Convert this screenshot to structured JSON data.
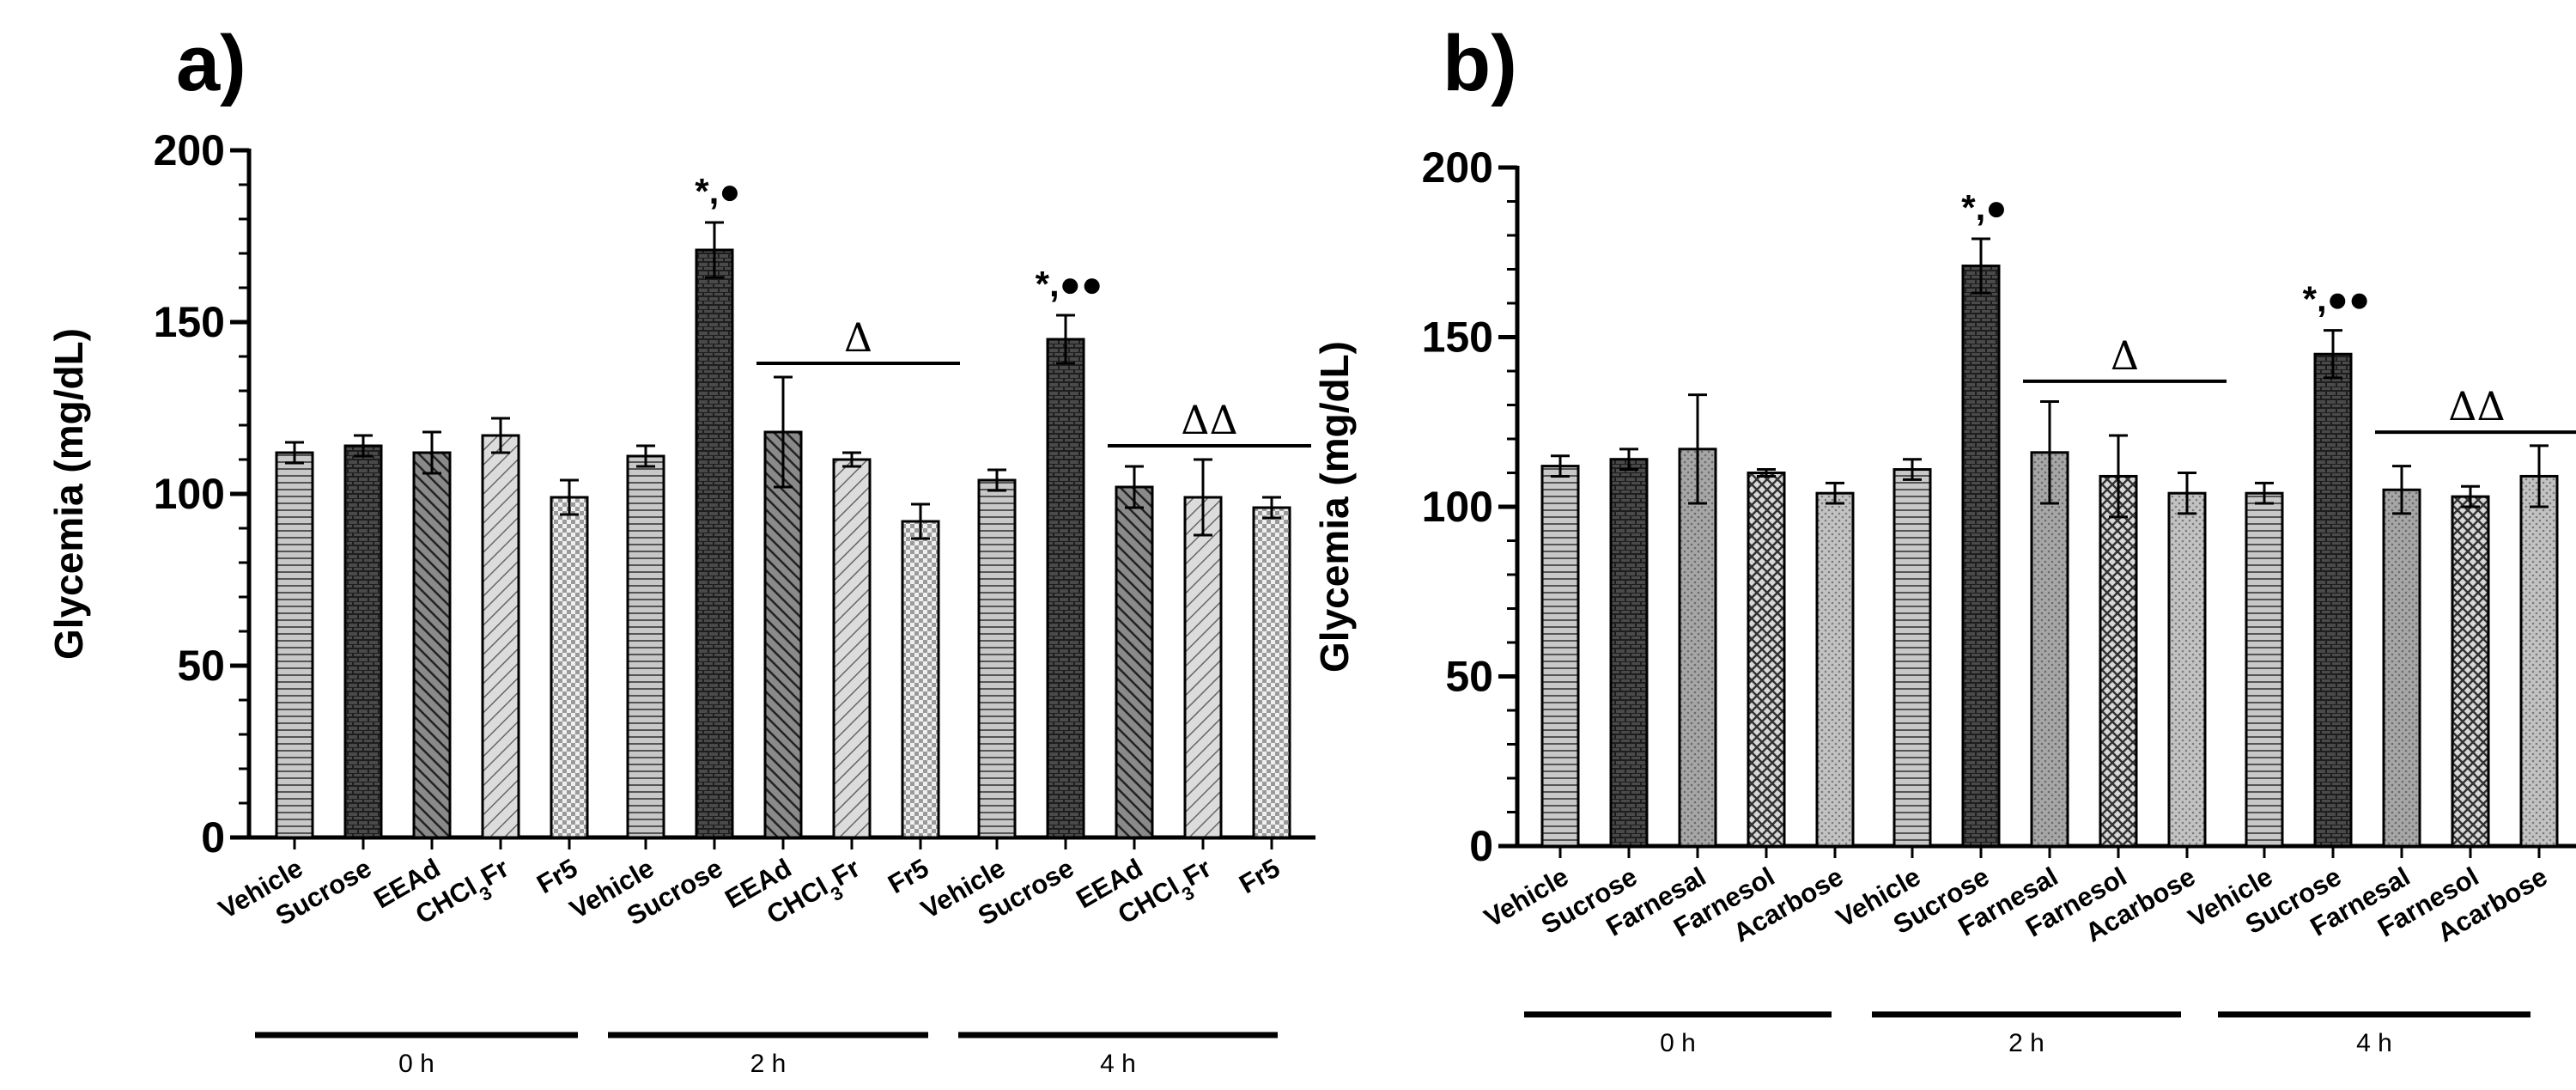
{
  "chart_data": [
    {
      "type": "bar",
      "panel_label": "a)",
      "ylabel": "Glycemia (mg/dL)",
      "ylim": [
        0,
        200
      ],
      "yticks": [
        "0",
        "50",
        "100",
        "150",
        "200"
      ],
      "groups": [
        {
          "name": "0 h",
          "categories": [
            "Vehicle",
            "Sucrose",
            "EEAd",
            "CHCl3Fr",
            "Fr5"
          ],
          "values": [
            112,
            114,
            112,
            117,
            99
          ],
          "errors": [
            3,
            3,
            6,
            5,
            5
          ],
          "annotations": []
        },
        {
          "name": "2 h",
          "categories": [
            "Vehicle",
            "Sucrose",
            "EEAd",
            "CHCl3Fr",
            "Fr5"
          ],
          "values": [
            111,
            171,
            118,
            110,
            92
          ],
          "errors": [
            3,
            8,
            16,
            2,
            5
          ],
          "annotations": [
            {
              "bar": 1,
              "text": "*,●"
            }
          ],
          "bracket": {
            "from": 2,
            "to": 4,
            "text": "Δ",
            "y": 138
          }
        },
        {
          "name": "4 h",
          "categories": [
            "Vehicle",
            "Sucrose",
            "EEAd",
            "CHCl3Fr",
            "Fr5"
          ],
          "values": [
            104,
            145,
            102,
            99,
            96
          ],
          "errors": [
            3,
            7,
            6,
            11,
            3
          ],
          "annotations": [
            {
              "bar": 1,
              "text": "*,●●"
            }
          ],
          "bracket": {
            "from": 2,
            "to": 4,
            "text": "ΔΔ",
            "y": 114
          }
        }
      ]
    },
    {
      "type": "bar",
      "panel_label": "b)",
      "ylabel": "Glycemia (mg/dL)",
      "ylim": [
        0,
        200
      ],
      "yticks": [
        "0",
        "50",
        "100",
        "150",
        "200"
      ],
      "groups": [
        {
          "name": "0 h",
          "categories": [
            "Vehicle",
            "Sucrose",
            "Farnesal",
            "Farnesol",
            "Acarbose"
          ],
          "values": [
            112,
            114,
            117,
            110,
            104
          ],
          "errors": [
            3,
            3,
            16,
            1,
            3
          ],
          "annotations": []
        },
        {
          "name": "2 h",
          "categories": [
            "Vehicle",
            "Sucrose",
            "Farnesal",
            "Farnesol",
            "Acarbose"
          ],
          "values": [
            111,
            171,
            116,
            109,
            104
          ],
          "errors": [
            3,
            8,
            15,
            12,
            6
          ],
          "annotations": [
            {
              "bar": 1,
              "text": "*,●"
            }
          ],
          "bracket": {
            "from": 2,
            "to": 4,
            "text": "Δ",
            "y": 137
          }
        },
        {
          "name": "4 h",
          "categories": [
            "Vehicle",
            "Sucrose",
            "Farnesal",
            "Farnesol",
            "Acarbose"
          ],
          "values": [
            104,
            145,
            105,
            103,
            109
          ],
          "errors": [
            3,
            7,
            7,
            3,
            9
          ],
          "annotations": [
            {
              "bar": 1,
              "text": "*,●●"
            }
          ],
          "bracket": {
            "from": 2,
            "to": 4,
            "text": "ΔΔ",
            "y": 122
          }
        }
      ]
    }
  ]
}
